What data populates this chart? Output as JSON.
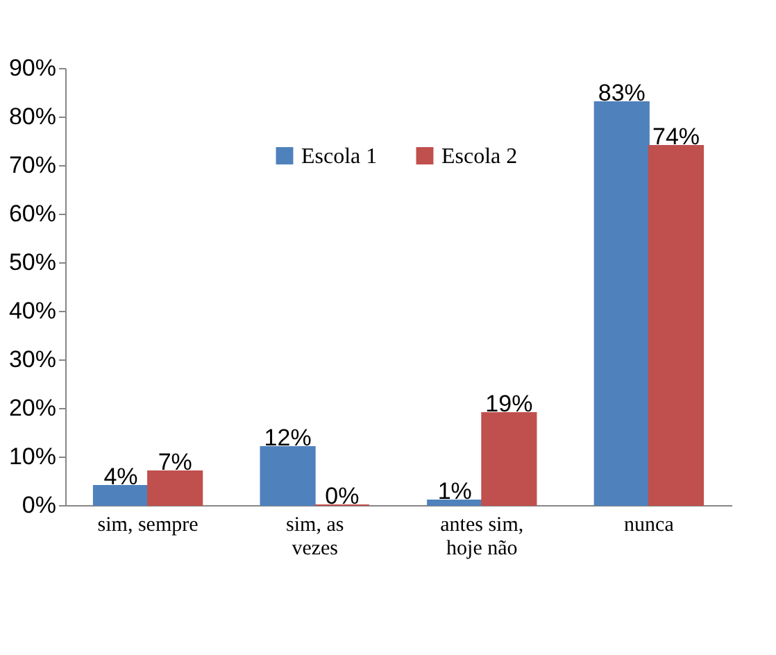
{
  "chart_data": {
    "type": "bar",
    "categories": [
      "sim, sempre",
      "sim, as vezes",
      "antes sim, hoje não",
      "nunca"
    ],
    "series": [
      {
        "name": "Escola 1",
        "color": "#4f81bd",
        "values": [
          4,
          12,
          1,
          83
        ],
        "value_labels": [
          "4%",
          "12%",
          "1%",
          "83%"
        ]
      },
      {
        "name": "Escola 2",
        "color": "#c0504d",
        "values": [
          7,
          0,
          19,
          74
        ],
        "value_labels": [
          "7%",
          "0%",
          "19%",
          "74%"
        ]
      }
    ],
    "ylim": [
      0,
      90
    ],
    "yticks": [
      {
        "value": 0,
        "label": "0%"
      },
      {
        "value": 10,
        "label": "10%"
      },
      {
        "value": 20,
        "label": "20%"
      },
      {
        "value": 30,
        "label": "30%"
      },
      {
        "value": 40,
        "label": "40%"
      },
      {
        "value": 50,
        "label": "50%"
      },
      {
        "value": 60,
        "label": "60%"
      },
      {
        "value": 70,
        "label": "70%"
      },
      {
        "value": 80,
        "label": "80%"
      },
      {
        "value": 90,
        "label": "90%"
      }
    ],
    "legend": "top",
    "grid": false
  }
}
